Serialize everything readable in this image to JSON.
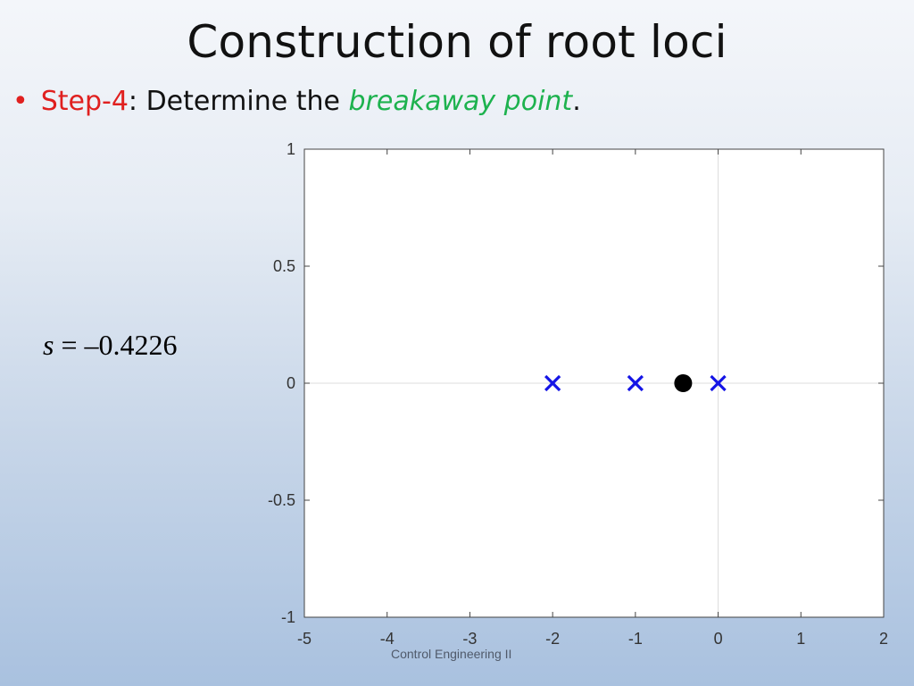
{
  "slide": {
    "title": "Construction of root loci",
    "bullet": {
      "step_label": "Step-4",
      "text_before": ": Determine the ",
      "emphasis": "breakaway point",
      "text_after": "."
    },
    "equation": {
      "variable": "s",
      "operator": " = ",
      "value": "–0.4226"
    },
    "footer": "Control Engineering II"
  },
  "chart_data": {
    "type": "scatter",
    "title": "",
    "xlabel": "",
    "ylabel": "",
    "xlim": [
      -5,
      2
    ],
    "ylim": [
      -1,
      1
    ],
    "x_ticks": [
      -5,
      -4,
      -3,
      -2,
      -1,
      0,
      1,
      2
    ],
    "x_tick_labels": [
      "-5",
      "-4",
      "-3",
      "-2",
      "-1",
      "0",
      "1",
      "2"
    ],
    "y_ticks": [
      -1,
      -0.5,
      0,
      0.5,
      1
    ],
    "y_tick_labels": [
      "-1",
      "-0.5",
      "0",
      "0.5",
      "1"
    ],
    "grid": "axes-at-origin",
    "series": [
      {
        "marker": "x",
        "color": "#1414e6",
        "points": [
          {
            "x": -2,
            "y": 0
          },
          {
            "x": -1,
            "y": 0
          },
          {
            "x": 0,
            "y": 0
          }
        ]
      },
      {
        "marker": "circle",
        "color": "#000000",
        "points": [
          {
            "x": -0.4226,
            "y": 0
          }
        ]
      }
    ]
  }
}
